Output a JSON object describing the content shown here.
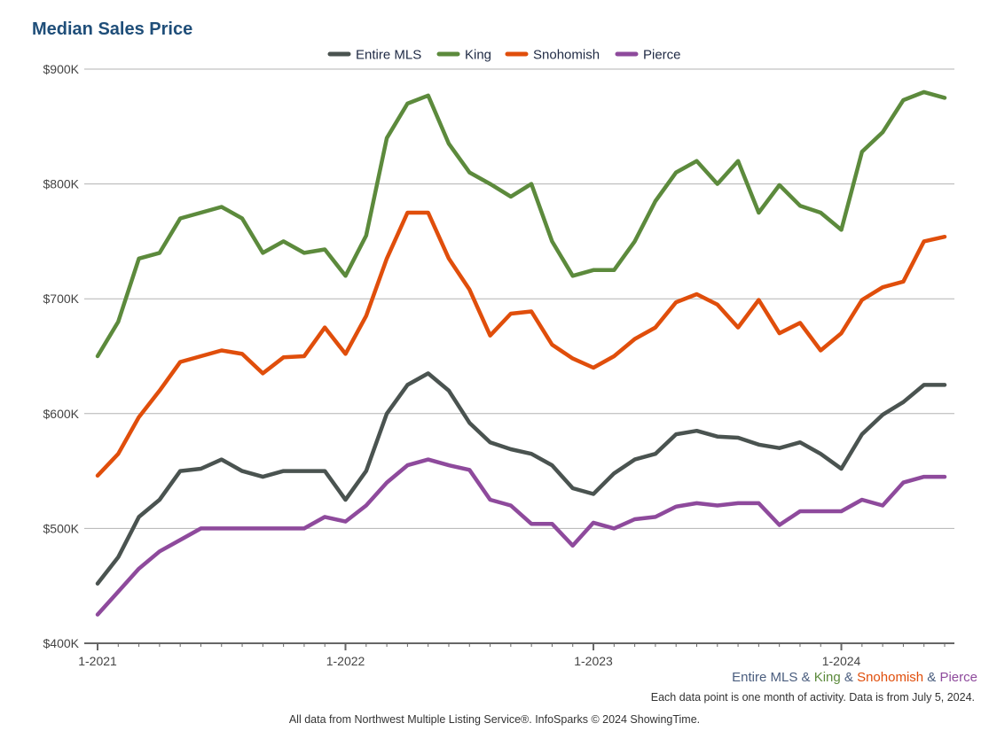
{
  "chart_data": {
    "type": "line",
    "title": "Median Sales Price",
    "xlabel": "",
    "ylabel": "",
    "ylim": [
      400000,
      900000
    ],
    "y_ticks": [
      {
        "value": 400000,
        "label": "$400K"
      },
      {
        "value": 500000,
        "label": "$500K"
      },
      {
        "value": 600000,
        "label": "$600K"
      },
      {
        "value": 700000,
        "label": "$700K"
      },
      {
        "value": 800000,
        "label": "$800K"
      },
      {
        "value": 900000,
        "label": "$900K"
      }
    ],
    "x_ticks": [
      {
        "index": 0,
        "label": "1-2021"
      },
      {
        "index": 12,
        "label": "1-2022"
      },
      {
        "index": 24,
        "label": "1-2023"
      },
      {
        "index": 36,
        "label": "1-2024"
      }
    ],
    "x": [
      "2021-01",
      "2021-02",
      "2021-03",
      "2021-04",
      "2021-05",
      "2021-06",
      "2021-07",
      "2021-08",
      "2021-09",
      "2021-10",
      "2021-11",
      "2021-12",
      "2022-01",
      "2022-02",
      "2022-03",
      "2022-04",
      "2022-05",
      "2022-06",
      "2022-07",
      "2022-08",
      "2022-09",
      "2022-10",
      "2022-11",
      "2022-12",
      "2023-01",
      "2023-02",
      "2023-03",
      "2023-04",
      "2023-05",
      "2023-06",
      "2023-07",
      "2023-08",
      "2023-09",
      "2023-10",
      "2023-11",
      "2023-12",
      "2024-01",
      "2024-02",
      "2024-03",
      "2024-04",
      "2024-05",
      "2024-06"
    ],
    "grid": true,
    "legend_position": "top",
    "series": [
      {
        "name": "Entire MLS",
        "color": "#4a5350",
        "values": [
          452000,
          475000,
          510000,
          525000,
          550000,
          552000,
          560000,
          550000,
          545000,
          550000,
          550000,
          550000,
          525000,
          550000,
          600000,
          625000,
          635000,
          620000,
          592000,
          575000,
          569000,
          565000,
          555000,
          535000,
          530000,
          548000,
          560000,
          565000,
          582000,
          585000,
          580000,
          579000,
          573000,
          570000,
          575000,
          565000,
          552000,
          582000,
          599000,
          610000,
          625000,
          625000
        ]
      },
      {
        "name": "King",
        "color": "#5c8a3c",
        "values": [
          650000,
          680000,
          735000,
          740000,
          770000,
          775000,
          780000,
          770000,
          740000,
          750000,
          740000,
          743000,
          720000,
          755000,
          840000,
          870000,
          877000,
          835000,
          810000,
          800000,
          789000,
          800000,
          750000,
          720000,
          725000,
          725000,
          750000,
          785000,
          810000,
          820000,
          800000,
          820000,
          775000,
          799000,
          781000,
          775000,
          760000,
          828000,
          845000,
          873000,
          880000,
          875000
        ]
      },
      {
        "name": "Snohomish",
        "color": "#e04e0b",
        "values": [
          546000,
          565000,
          597000,
          620000,
          645000,
          650000,
          655000,
          652000,
          635000,
          649000,
          650000,
          675000,
          652000,
          685000,
          735000,
          775000,
          775000,
          735000,
          708000,
          668000,
          687000,
          689000,
          660000,
          648000,
          640000,
          650000,
          665000,
          675000,
          697000,
          704000,
          695000,
          675000,
          699000,
          670000,
          679000,
          655000,
          670000,
          699000,
          710000,
          715000,
          750000,
          754000
        ]
      },
      {
        "name": "Pierce",
        "color": "#8e4a9c",
        "values": [
          425000,
          445000,
          465000,
          480000,
          490000,
          500000,
          500000,
          500000,
          500000,
          500000,
          500000,
          510000,
          506000,
          520000,
          540000,
          555000,
          560000,
          555000,
          551000,
          525000,
          520000,
          504000,
          504000,
          485000,
          505000,
          500000,
          508000,
          510000,
          519000,
          522000,
          520000,
          522000,
          522000,
          503000,
          515000,
          515000,
          515000,
          525000,
          520000,
          540000,
          545000,
          545000
        ]
      }
    ]
  },
  "key_line": {
    "parts": [
      {
        "text": "Entire MLS",
        "color": "#4a5d7e"
      },
      {
        "text": " & ",
        "color": "#4a5d7e"
      },
      {
        "text": "King",
        "color": "#5c8a3c"
      },
      {
        "text": " & ",
        "color": "#4a5d7e"
      },
      {
        "text": "Snohomish",
        "color": "#e04e0b"
      },
      {
        "text": " & ",
        "color": "#4a5d7e"
      },
      {
        "text": "Pierce",
        "color": "#8e4a9c"
      }
    ]
  },
  "note": "Each data point is one month of activity. Data is from July 5, 2024.",
  "source": "All data from Northwest Multiple Listing Service®. InfoSparks © 2024 ShowingTime."
}
